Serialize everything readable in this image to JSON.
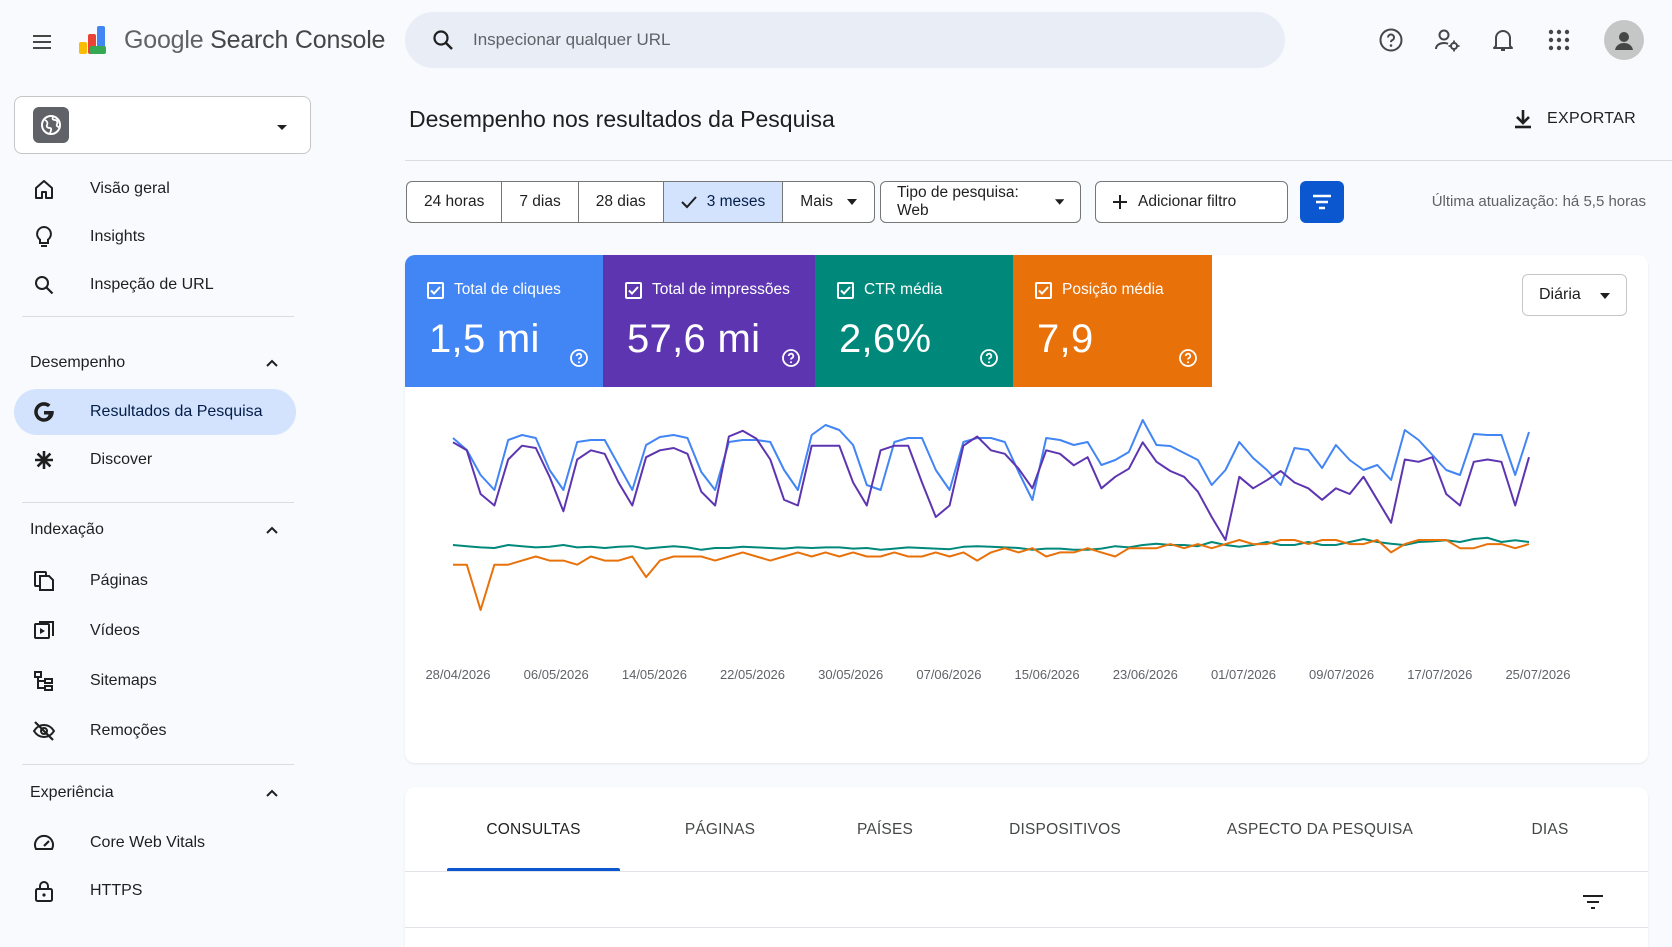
{
  "app": {
    "brand_google": "Google",
    "brand_product": "Search Console"
  },
  "search": {
    "placeholder": "Inspecionar qualquer URL"
  },
  "sidebar": {
    "items_top": [
      {
        "label": "Visão geral",
        "icon": "home-icon"
      },
      {
        "label": "Insights",
        "icon": "lightbulb-icon"
      },
      {
        "label": "Inspeção de URL",
        "icon": "search-icon"
      }
    ],
    "section_performance": "Desempenho",
    "performance_items": [
      {
        "label": "Resultados da Pesquisa",
        "icon": "google-g-icon",
        "active": true
      },
      {
        "label": "Discover",
        "icon": "asterisk-icon"
      }
    ],
    "section_indexing": "Indexação",
    "indexing_items": [
      {
        "label": "Páginas",
        "icon": "pages-icon"
      },
      {
        "label": "Vídeos",
        "icon": "video-icon"
      },
      {
        "label": "Sitemaps",
        "icon": "sitemap-icon"
      },
      {
        "label": "Remoções",
        "icon": "eye-off-icon"
      }
    ],
    "section_experience": "Experiência",
    "experience_items": [
      {
        "label": "Core Web Vitals",
        "icon": "gauge-icon"
      },
      {
        "label": "HTTPS",
        "icon": "lock-icon"
      }
    ]
  },
  "main": {
    "title": "Desempenho nos resultados da Pesquisa",
    "export_label": "EXPORTAR",
    "ranges": [
      "24 horas",
      "7 dias",
      "28 dias",
      "3 meses",
      "Mais"
    ],
    "selected_range": "3 meses",
    "search_type": "Tipo de pesquisa: Web",
    "add_filter": "Adicionar filtro",
    "updated": "Última atualização: há 5,5 horas",
    "granularity": "Diária"
  },
  "metrics": [
    {
      "label": "Total de cliques",
      "value": "1,5 mi",
      "color": "#4285f4"
    },
    {
      "label": "Total de impressões",
      "value": "57,6 mi",
      "color": "#5e35b1"
    },
    {
      "label": "CTR média",
      "value": "2,6%",
      "color": "#00897b"
    },
    {
      "label": "Posição média",
      "value": "7,9",
      "color": "#e8710a"
    }
  ],
  "chart_data": {
    "type": "line",
    "x_ticks": [
      "28/04/2026",
      "06/05/2026",
      "14/05/2026",
      "22/05/2026",
      "30/05/2026",
      "07/06/2026",
      "15/06/2026",
      "23/06/2026",
      "01/07/2026",
      "09/07/2026",
      "17/07/2026",
      "25/07/2026"
    ],
    "grid": false,
    "y_axis_labels_shown": false,
    "series": [
      {
        "name": "Total de cliques",
        "color": "#4285f4",
        "values": [
          0.82,
          0.7,
          0.45,
          0.3,
          0.8,
          0.85,
          0.82,
          0.5,
          0.3,
          0.78,
          0.8,
          0.8,
          0.55,
          0.3,
          0.75,
          0.83,
          0.85,
          0.82,
          0.48,
          0.3,
          0.78,
          0.8,
          0.8,
          0.78,
          0.5,
          0.3,
          0.85,
          0.95,
          0.9,
          0.75,
          0.35,
          0.3,
          0.78,
          0.82,
          0.82,
          0.5,
          0.3,
          0.78,
          0.82,
          0.82,
          0.78,
          0.48,
          0.2,
          0.82,
          0.8,
          0.75,
          0.78,
          0.55,
          0.6,
          0.68,
          1.0,
          0.75,
          0.74,
          0.67,
          0.6,
          0.35,
          0.5,
          0.78,
          0.62,
          0.5,
          0.35,
          0.72,
          0.7,
          0.52,
          0.75,
          0.6,
          0.5,
          0.55,
          0.4,
          0.9,
          0.8,
          0.65,
          0.5,
          0.45,
          0.86,
          0.85,
          0.85,
          0.45,
          0.88
        ]
      },
      {
        "name": "Total de impressões",
        "color": "#5e35b1",
        "values": [
          0.85,
          0.78,
          0.4,
          0.3,
          0.7,
          0.82,
          0.8,
          0.55,
          0.25,
          0.7,
          0.78,
          0.75,
          0.5,
          0.3,
          0.72,
          0.78,
          0.8,
          0.75,
          0.42,
          0.3,
          0.9,
          0.95,
          0.88,
          0.7,
          0.35,
          0.3,
          0.82,
          0.82,
          0.82,
          0.5,
          0.3,
          0.78,
          0.82,
          0.82,
          0.5,
          0.2,
          0.3,
          0.82,
          0.9,
          0.78,
          0.75,
          0.62,
          0.45,
          0.78,
          0.75,
          0.65,
          0.72,
          0.45,
          0.55,
          0.62,
          0.85,
          0.68,
          0.6,
          0.55,
          0.42,
          0.2,
          0.0,
          0.55,
          0.45,
          0.52,
          0.6,
          0.5,
          0.45,
          0.35,
          0.45,
          0.4,
          0.55,
          0.35,
          0.15,
          0.7,
          0.68,
          0.72,
          0.4,
          0.3,
          0.68,
          0.7,
          0.68,
          0.3,
          0.72
        ]
      },
      {
        "name": "CTR média",
        "color": "#00897b",
        "values": [
          0.5,
          0.48,
          0.46,
          0.45,
          0.5,
          0.48,
          0.46,
          0.47,
          0.5,
          0.46,
          0.47,
          0.45,
          0.47,
          0.48,
          0.44,
          0.46,
          0.48,
          0.46,
          0.42,
          0.45,
          0.45,
          0.47,
          0.46,
          0.45,
          0.44,
          0.46,
          0.45,
          0.46,
          0.46,
          0.44,
          0.45,
          0.42,
          0.44,
          0.46,
          0.45,
          0.44,
          0.43,
          0.47,
          0.48,
          0.47,
          0.46,
          0.45,
          0.42,
          0.44,
          0.44,
          0.42,
          0.42,
          0.44,
          0.48,
          0.46,
          0.5,
          0.52,
          0.5,
          0.5,
          0.48,
          0.55,
          0.5,
          0.47,
          0.5,
          0.55,
          0.5,
          0.5,
          0.55,
          0.5,
          0.5,
          0.55,
          0.6,
          0.55,
          0.52,
          0.5,
          0.55,
          0.56,
          0.58,
          0.55,
          0.6,
          0.62,
          0.55,
          0.58,
          0.55
        ]
      },
      {
        "name": "Posição média",
        "color": "#e8710a",
        "values": [
          7.9,
          7.9,
          9.0,
          7.9,
          7.9,
          7.8,
          7.7,
          7.8,
          7.8,
          7.9,
          7.7,
          7.8,
          7.8,
          7.7,
          8.2,
          7.8,
          7.7,
          7.7,
          7.7,
          7.8,
          7.7,
          7.6,
          7.7,
          7.8,
          7.7,
          7.6,
          7.7,
          7.6,
          7.7,
          7.6,
          7.7,
          7.7,
          7.6,
          7.7,
          7.7,
          7.6,
          7.7,
          7.6,
          7.8,
          7.6,
          7.5,
          7.6,
          7.5,
          7.7,
          7.6,
          7.6,
          7.5,
          7.6,
          7.7,
          7.5,
          7.5,
          7.5,
          7.4,
          7.5,
          7.4,
          7.5,
          7.4,
          7.3,
          7.4,
          7.4,
          7.3,
          7.3,
          7.4,
          7.3,
          7.3,
          7.4,
          7.4,
          7.3,
          7.6,
          7.4,
          7.3,
          7.3,
          7.3,
          7.5,
          7.5,
          7.4,
          7.4,
          7.5,
          7.4
        ]
      }
    ]
  },
  "tabs": [
    "CONSULTAS",
    "PÁGINAS",
    "PAÍSES",
    "DISPOSITIVOS",
    "ASPECTO DA PESQUISA",
    "DIAS"
  ]
}
